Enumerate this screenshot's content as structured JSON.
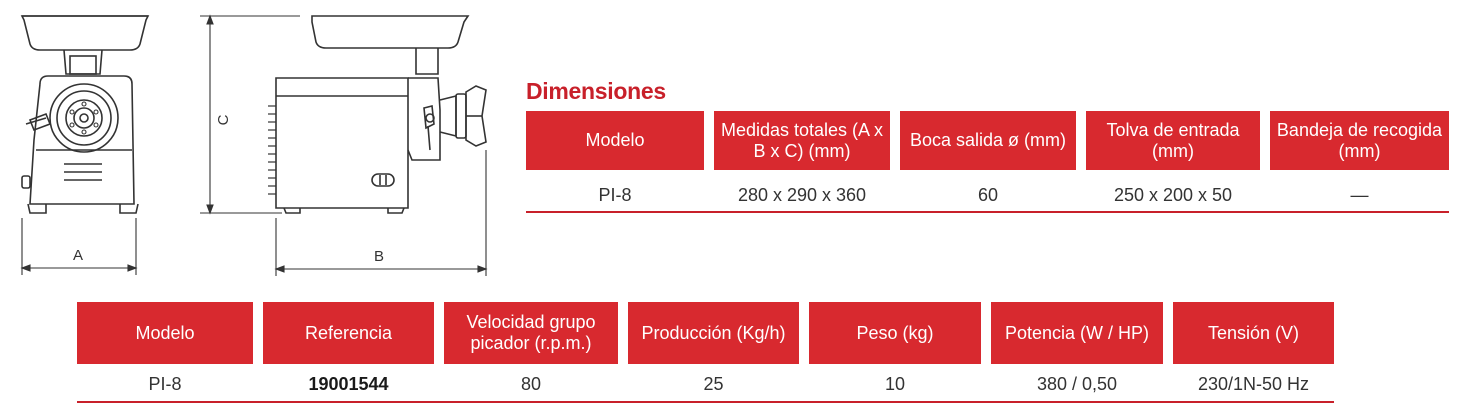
{
  "diagram": {
    "dimension_labels": {
      "a": "A",
      "b": "B",
      "c": "C"
    }
  },
  "dimensions": {
    "title": "Dimensiones",
    "headers": [
      "Modelo",
      "Medidas totales (A x B x C) (mm)",
      "Boca salida ø (mm)",
      "Tolva de entrada (mm)",
      "Bandeja de recogida (mm)"
    ],
    "row": [
      "PI-8",
      "280 x 290 x 360",
      "60",
      "250 x 200 x 50",
      "—"
    ]
  },
  "specs": {
    "headers": [
      "Modelo",
      "Referencia",
      "Velocidad grupo picador (r.p.m.)",
      "Producción (Kg/h)",
      "Peso (kg)",
      "Potencia (W / HP)",
      "Tensión (V)"
    ],
    "row": [
      "PI-8",
      "19001544",
      "80",
      "25",
      "10",
      "380 / 0,50",
      "230/1N-50 Hz"
    ]
  },
  "colors": {
    "accent": "#d8292f",
    "title": "#c8202a",
    "drawing": "#333333"
  }
}
